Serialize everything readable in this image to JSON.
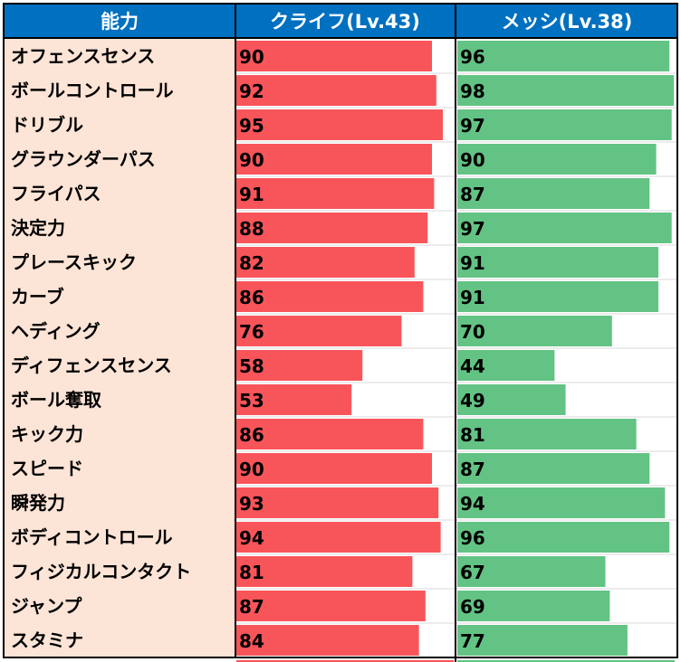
{
  "headers": {
    "ability": "能力",
    "player1": "クライフ(Lv.43)",
    "player2": "メッシ(Lv.38)"
  },
  "colors": {
    "header_bg": "#0070c0",
    "header_text": "#ffffff",
    "label_bg": "#fce4d6",
    "player1_bar": "#f8555a",
    "player2_bar": "#63c384",
    "grid": "#d9d9d9",
    "border": "#000000"
  },
  "chart_data": {
    "type": "bar",
    "categories": [
      "オフェンスセンス",
      "ボールコントロール",
      "ドリブル",
      "グラウンダーパス",
      "フライパス",
      "決定力",
      "プレースキック",
      "カーブ",
      "ヘディング",
      "ディフェンスセンス",
      "ボール奪取",
      "キック力",
      "スピード",
      "瞬発力",
      "ボディコントロール",
      "フィジカルコンタクト",
      "ジャンプ",
      "スタミナ"
    ],
    "series": [
      {
        "name": "クライフ(Lv.43)",
        "values": [
          90,
          92,
          95,
          90,
          91,
          88,
          82,
          86,
          76,
          58,
          53,
          86,
          90,
          93,
          94,
          81,
          87,
          84
        ]
      },
      {
        "name": "メッシ(Lv.38)",
        "values": [
          96,
          98,
          97,
          90,
          87,
          97,
          91,
          91,
          70,
          44,
          49,
          81,
          87,
          94,
          96,
          67,
          69,
          77
        ]
      }
    ]
  }
}
